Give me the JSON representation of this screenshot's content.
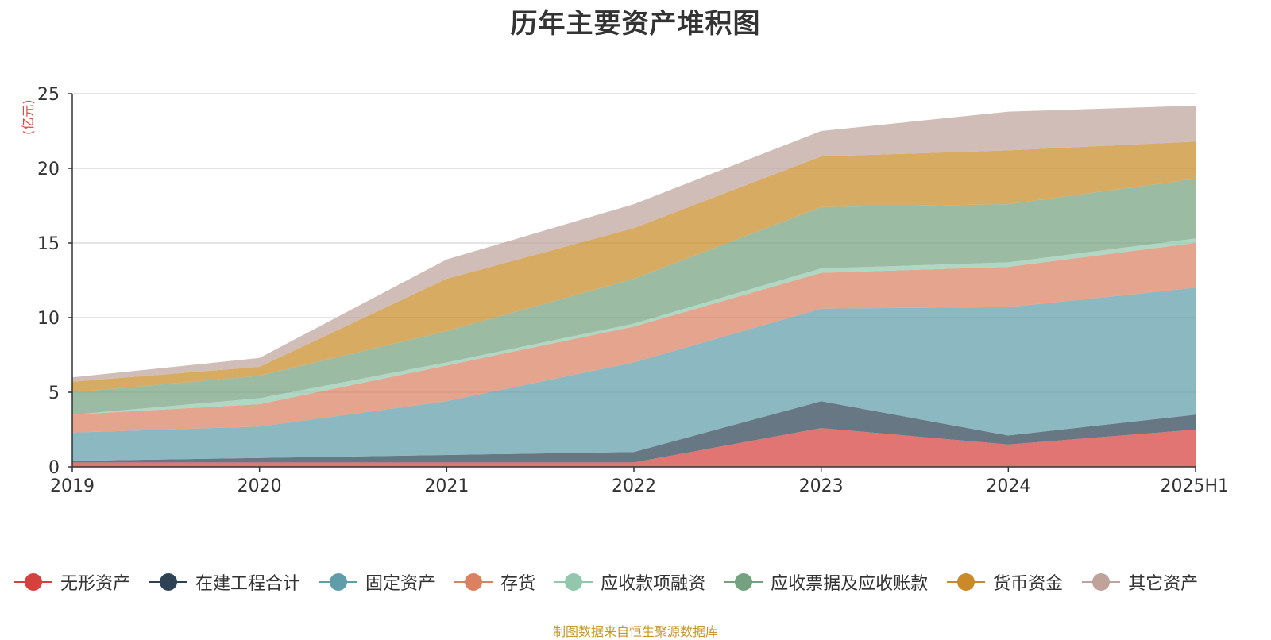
{
  "chart_data": {
    "type": "area",
    "title": "历年主要资产堆积图",
    "y_unit": "(亿元)",
    "source": "制图数据来自恒生聚源数据库",
    "categories": [
      "2019",
      "2020",
      "2021",
      "2022",
      "2023",
      "2024",
      "2025H1"
    ],
    "ylim": [
      0,
      25
    ],
    "yticks": [
      "0",
      "5",
      "10",
      "15",
      "20",
      "25"
    ],
    "stacked": true,
    "grid": true,
    "legend_position": "bottom",
    "series": [
      {
        "name": "无形资产",
        "color": "#d6403e",
        "values": [
          0.3,
          0.3,
          0.3,
          0.3,
          2.6,
          1.5,
          2.5
        ]
      },
      {
        "name": "在建工程合计",
        "color": "#2d4355",
        "values": [
          0.1,
          0.3,
          0.5,
          0.7,
          1.8,
          0.6,
          1.0
        ]
      },
      {
        "name": "固定资产",
        "color": "#5f9ea9",
        "values": [
          1.9,
          2.1,
          3.6,
          6.0,
          6.2,
          8.6,
          8.5
        ]
      },
      {
        "name": "存货",
        "color": "#d98161",
        "values": [
          1.2,
          1.5,
          2.4,
          2.4,
          2.4,
          2.7,
          3.0
        ]
      },
      {
        "name": "应收款项融资",
        "color": "#92c7ad",
        "values": [
          0.0,
          0.4,
          0.2,
          0.2,
          0.3,
          0.3,
          0.3
        ]
      },
      {
        "name": "应收票据及应收账款",
        "color": "#74a17f",
        "values": [
          1.5,
          1.5,
          2.1,
          3.0,
          4.1,
          3.9,
          4.0
        ]
      },
      {
        "name": "货币资金",
        "color": "#c98a27",
        "values": [
          0.7,
          0.6,
          3.5,
          3.4,
          3.4,
          3.6,
          2.5
        ]
      },
      {
        "name": "其它资产",
        "color": "#bfa39b",
        "values": [
          0.3,
          0.6,
          1.3,
          1.6,
          1.7,
          2.6,
          2.4
        ]
      }
    ]
  }
}
